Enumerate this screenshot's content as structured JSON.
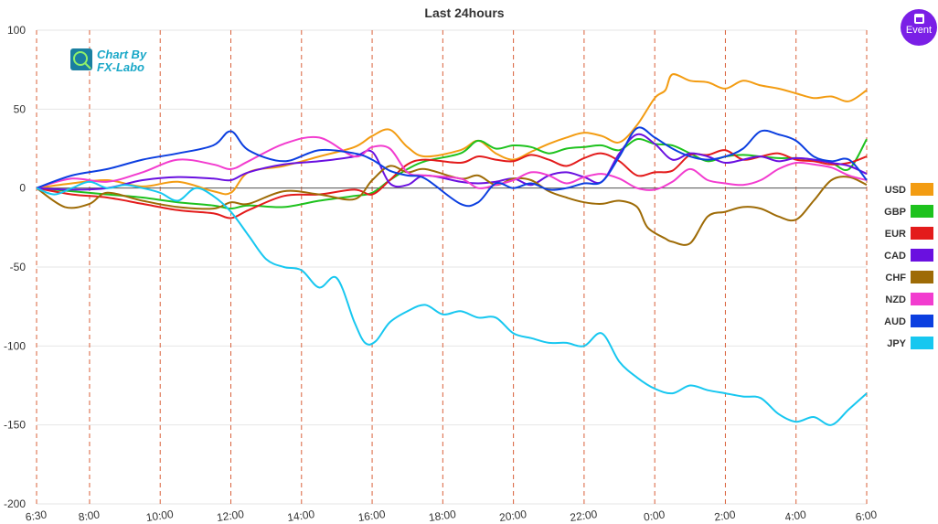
{
  "chart_data": {
    "type": "line",
    "title": "Last 24hours",
    "ylim": [
      -200,
      100
    ],
    "yticks": [
      100,
      50,
      0,
      -50,
      -100,
      -150,
      -200
    ],
    "xlim": [
      0,
      23.5
    ],
    "xticks": [
      {
        "label": "6:30",
        "x": 0
      },
      {
        "label": "8:00",
        "x": 1.5
      },
      {
        "label": "10:00",
        "x": 3.5
      },
      {
        "label": "12:00",
        "x": 5.5
      },
      {
        "label": "14:00",
        "x": 7.5
      },
      {
        "label": "16:00",
        "x": 9.5
      },
      {
        "label": "18:00",
        "x": 11.5
      },
      {
        "label": "20:00",
        "x": 13.5
      },
      {
        "label": "22:00",
        "x": 15.5
      },
      {
        "label": "0:00",
        "x": 17.5
      },
      {
        "label": "2:00",
        "x": 19.5
      },
      {
        "label": "4:00",
        "x": 21.5
      },
      {
        "label": "6:00",
        "x": 23.5
      }
    ],
    "legend_position": "right",
    "series": [
      {
        "name": "USD",
        "color": "#f39c12",
        "x": [
          0,
          1,
          2,
          3,
          4,
          5,
          5.5,
          6,
          7,
          8,
          9,
          9.5,
          10,
          10.5,
          11,
          12,
          12.5,
          13,
          13.5,
          14,
          14.5,
          15,
          15.5,
          16,
          16.5,
          17,
          17.5,
          17.8,
          18,
          18.5,
          19,
          19.5,
          20,
          20.5,
          21,
          21.5,
          22,
          22.5,
          23,
          23.5
        ],
        "y": [
          0,
          3,
          5,
          1,
          4,
          -2,
          -3,
          10,
          14,
          20,
          26,
          33,
          37,
          26,
          20,
          24,
          30,
          22,
          18,
          23,
          28,
          32,
          35,
          33,
          29,
          40,
          57,
          62,
          72,
          68,
          67,
          63,
          68,
          65,
          63,
          60,
          57,
          58,
          55,
          62
        ]
      },
      {
        "name": "GBP",
        "color": "#1ec21e",
        "x": [
          0,
          1,
          2,
          3,
          4,
          5,
          5.5,
          6,
          7,
          8,
          9,
          9.5,
          10,
          10.5,
          11,
          12,
          12.5,
          13,
          13.5,
          14,
          14.5,
          15,
          15.5,
          16,
          16.5,
          17,
          17.5,
          18,
          18.5,
          19,
          19.5,
          20,
          20.5,
          21,
          21.5,
          22,
          22.5,
          23,
          23.5
        ],
        "y": [
          0,
          -2,
          -4,
          -6,
          -9,
          -11,
          -13,
          -11,
          -12,
          -8,
          -5,
          -3,
          5,
          12,
          17,
          22,
          30,
          25,
          27,
          26,
          22,
          25,
          26,
          27,
          24,
          31,
          28,
          27,
          22,
          17,
          20,
          21,
          20,
          19,
          19,
          18,
          16,
          12,
          31
        ]
      },
      {
        "name": "EUR",
        "color": "#e31b1b",
        "x": [
          0,
          1,
          2,
          3,
          4,
          5,
          5.5,
          6,
          7,
          8,
          9,
          9.5,
          10,
          10.5,
          11,
          12,
          12.5,
          13,
          13.5,
          14,
          14.5,
          15,
          15.5,
          16,
          16.5,
          17,
          17.5,
          18,
          18.5,
          19,
          19.5,
          20,
          20.5,
          21,
          21.5,
          22,
          22.5,
          23,
          23.5
        ],
        "y": [
          0,
          -4,
          -6,
          -10,
          -14,
          -16,
          -19,
          -14,
          -5,
          -4,
          -1,
          -4,
          5,
          15,
          18,
          16,
          20,
          18,
          17,
          21,
          18,
          14,
          19,
          22,
          17,
          8,
          10,
          11,
          21,
          21,
          24,
          18,
          20,
          22,
          18,
          17,
          15,
          16,
          20
        ]
      },
      {
        "name": "CAD",
        "color": "#6a10e0",
        "x": [
          0,
          1,
          2,
          3,
          4,
          5,
          5.5,
          6,
          7,
          8,
          9,
          9.5,
          10,
          10.5,
          11,
          12,
          12.5,
          13,
          13.5,
          14,
          14.5,
          15,
          15.5,
          16,
          16.5,
          17,
          17.5,
          18,
          18.5,
          19,
          19.5,
          20,
          20.5,
          21,
          21.5,
          22,
          22.5,
          23,
          23.5
        ],
        "y": [
          0,
          -1,
          0,
          5,
          7,
          6,
          5,
          10,
          15,
          17,
          20,
          23,
          3,
          2,
          8,
          4,
          3,
          4,
          6,
          2,
          8,
          10,
          7,
          4,
          22,
          34,
          28,
          18,
          22,
          20,
          16,
          18,
          20,
          17,
          19,
          18,
          16,
          14,
          9
        ]
      },
      {
        "name": "CHF",
        "color": "#9e6b06",
        "x": [
          0,
          0.8,
          1.5,
          2,
          3,
          4,
          5,
          5.5,
          6,
          7,
          8,
          9,
          9.5,
          10,
          10.5,
          11,
          12,
          12.5,
          13,
          13.5,
          14,
          14.5,
          15,
          15.5,
          16,
          16.5,
          17,
          17.3,
          17.8,
          18,
          18.5,
          19,
          19.5,
          20,
          20.5,
          21,
          21.5,
          22,
          22.5,
          23,
          23.5
        ],
        "y": [
          0,
          -12,
          -10,
          -3,
          -8,
          -12,
          -13,
          -9,
          -10,
          -2,
          -4,
          -7,
          5,
          14,
          10,
          12,
          6,
          8,
          2,
          6,
          5,
          -2,
          -6,
          -9,
          -10,
          -8,
          -12,
          -25,
          -32,
          -34,
          -35,
          -18,
          -15,
          -12,
          -13,
          -18,
          -20,
          -8,
          5,
          7,
          2
        ]
      },
      {
        "name": "NZD",
        "color": "#f23ccf",
        "x": [
          0,
          1,
          2,
          3,
          4,
          5,
          5.5,
          6,
          7,
          8,
          9,
          9.5,
          10,
          10.5,
          11,
          12,
          12.5,
          13,
          13.5,
          14,
          14.5,
          15,
          15.5,
          16,
          16.5,
          17,
          17.5,
          18,
          18.5,
          19,
          19.5,
          20,
          20.5,
          21,
          21.5,
          22,
          22.5,
          23,
          23.5
        ],
        "y": [
          0,
          6,
          4,
          10,
          18,
          15,
          12,
          17,
          28,
          32,
          20,
          26,
          25,
          10,
          8,
          6,
          0,
          2,
          5,
          10,
          8,
          3,
          7,
          9,
          6,
          0,
          -1,
          4,
          12,
          5,
          3,
          2,
          5,
          12,
          16,
          15,
          13,
          8,
          5
        ]
      },
      {
        "name": "AUD",
        "color": "#0c3fe0",
        "x": [
          0,
          1,
          2,
          3,
          4,
          5,
          5.5,
          6,
          7,
          8,
          9,
          9.5,
          10,
          10.5,
          11,
          12,
          12.5,
          13,
          13.5,
          14,
          14.5,
          15,
          15.5,
          16,
          16.5,
          17,
          17.5,
          18,
          18.5,
          19,
          19.5,
          20,
          20.5,
          21,
          21.5,
          22,
          22.5,
          23,
          23.5
        ],
        "y": [
          0,
          8,
          12,
          18,
          22,
          27,
          36,
          24,
          17,
          24,
          22,
          18,
          11,
          8,
          6,
          -10,
          -9,
          3,
          0,
          3,
          -1,
          0,
          3,
          4,
          20,
          38,
          32,
          25,
          20,
          18,
          20,
          25,
          36,
          34,
          30,
          20,
          17,
          18,
          5
        ]
      },
      {
        "name": "JPY",
        "color": "#17c7f0",
        "x": [
          0,
          0.5,
          1,
          1.5,
          2,
          2.5,
          3,
          3.5,
          4,
          4.5,
          5,
          5.5,
          6,
          6.5,
          7,
          7.5,
          8,
          8.5,
          9,
          9.3,
          9.6,
          10,
          10.5,
          11,
          11.5,
          12,
          12.5,
          13,
          13.5,
          14,
          14.5,
          15,
          15.5,
          16,
          16.5,
          17,
          17.5,
          18,
          18.5,
          19,
          19.5,
          20,
          20.5,
          21,
          21.5,
          22,
          22.5,
          23,
          23.5
        ],
        "y": [
          0,
          -4,
          0,
          4,
          0,
          2,
          0,
          -3,
          -8,
          0,
          -5,
          -15,
          -30,
          -45,
          -50,
          -52,
          -63,
          -57,
          -85,
          -98,
          -97,
          -85,
          -78,
          -74,
          -80,
          -78,
          -82,
          -82,
          -92,
          -95,
          -98,
          -98,
          -100,
          -92,
          -110,
          -120,
          -127,
          -130,
          -125,
          -128,
          -130,
          -132,
          -133,
          -143,
          -148,
          -145,
          -150,
          -140,
          -130
        ]
      }
    ]
  },
  "logo": {
    "line1": "Chart By",
    "line2": "FX-Labo"
  },
  "event_button": {
    "label": "Event"
  }
}
